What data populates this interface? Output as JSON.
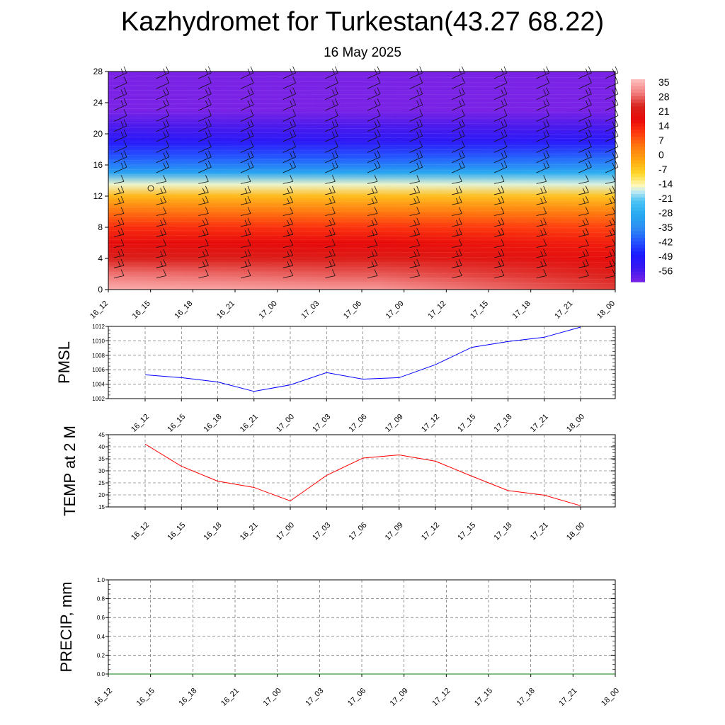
{
  "title": "Kazhydromet for Turkestan(43.27 68.22)",
  "subtitle": "16 May 2025",
  "chart_data": [
    {
      "type": "heatmap",
      "description_of_field": "temperature cross-section with wind barbs",
      "x_ticks": [
        "16_12",
        "16_15",
        "16_18",
        "16_21",
        "17_00",
        "17_03",
        "17_06",
        "17_09",
        "17_12",
        "17_15",
        "17_18",
        "17_21",
        "18_00"
      ],
      "y_ticks": [
        0,
        4,
        8,
        12,
        16,
        20,
        24,
        28
      ],
      "ylim": [
        0,
        28
      ],
      "colorbar_labels": [
        35,
        28,
        21,
        14,
        7,
        0,
        -7,
        -14,
        -21,
        -28,
        -35,
        -42,
        -49,
        -56
      ],
      "colorbar_range": [
        -63,
        42
      ],
      "color_stops": [
        {
          "v": -63,
          "c": "#7a23e6"
        },
        {
          "v": -56,
          "c": "#3a18f0"
        },
        {
          "v": -49,
          "c": "#1b1aff"
        },
        {
          "v": -42,
          "c": "#2457ff"
        },
        {
          "v": -35,
          "c": "#2e8ef2"
        },
        {
          "v": -28,
          "c": "#27aaf0"
        },
        {
          "v": -21,
          "c": "#4fc4f4"
        },
        {
          "v": -16,
          "c": "#c6ecf2"
        },
        {
          "v": -13,
          "c": "#fff8b8"
        },
        {
          "v": -7,
          "c": "#ffd72a"
        },
        {
          "v": 0,
          "c": "#ffa711"
        },
        {
          "v": 7,
          "c": "#ff7a10"
        },
        {
          "v": 14,
          "c": "#ff3b10"
        },
        {
          "v": 21,
          "c": "#e80a0a"
        },
        {
          "v": 28,
          "c": "#d8241e"
        },
        {
          "v": 35,
          "c": "#f28080"
        },
        {
          "v": 42,
          "c": "#ffc0c0"
        }
      ],
      "profiles": {
        "heights": [
          0,
          2,
          4,
          6,
          8,
          10,
          12,
          13.5,
          15,
          17,
          19,
          21,
          23,
          28
        ],
        "temps_start": [
          40,
          34,
          27,
          22,
          16,
          8,
          -2,
          -14,
          -30,
          -42,
          -52,
          -58,
          -63,
          -63
        ],
        "temps_mid": [
          38,
          32,
          26,
          21,
          15,
          7,
          -3,
          -14,
          -29,
          -42,
          -53,
          -58,
          -63,
          -63
        ],
        "temps_end": [
          30,
          26,
          22,
          18,
          13,
          6,
          -4,
          -15,
          -27,
          -40,
          -52,
          -58,
          -63,
          -63
        ]
      }
    },
    {
      "type": "line",
      "ylabel": "PMSL",
      "categories": [
        "16_12",
        "16_15",
        "16_18",
        "16_21",
        "17_00",
        "17_03",
        "17_06",
        "17_09",
        "17_12",
        "17_15",
        "17_18",
        "17_21",
        "18_00"
      ],
      "values": [
        1005.3,
        1004.9,
        1004.3,
        1003.0,
        1003.9,
        1005.6,
        1004.7,
        1004.9,
        1006.7,
        1009.1,
        1009.9,
        1010.5,
        1011.9
      ],
      "ylim": [
        1002,
        1012
      ],
      "y_ticks": [
        1002,
        1004,
        1006,
        1008,
        1010,
        1012
      ],
      "color": "#0000ff",
      "grid": true
    },
    {
      "type": "line",
      "ylabel": "TEMP at 2 M",
      "categories": [
        "16_12",
        "16_15",
        "16_18",
        "16_21",
        "17_00",
        "17_03",
        "17_06",
        "17_09",
        "17_12",
        "17_15",
        "17_18",
        "17_21",
        "18_00"
      ],
      "values": [
        41.1,
        31.9,
        25.7,
        23.1,
        17.5,
        28.1,
        35.3,
        36.6,
        34.0,
        27.8,
        21.8,
        19.9,
        15.5
      ],
      "ylim": [
        15,
        45
      ],
      "y_ticks": [
        15,
        20,
        25,
        30,
        35,
        40,
        45
      ],
      "color": "#ff0000",
      "grid": true
    },
    {
      "type": "line",
      "ylabel": "PRECIP, mm",
      "categories": [
        "16_12",
        "16_15",
        "16_18",
        "16_21",
        "17_00",
        "17_03",
        "17_06",
        "17_09",
        "17_12",
        "17_15",
        "17_18",
        "17_21",
        "18_00"
      ],
      "values": [
        0,
        0,
        0,
        0,
        0,
        0,
        0,
        0,
        0,
        0,
        0,
        0,
        0
      ],
      "ylim": [
        0,
        1
      ],
      "y_ticks": [
        "0.0",
        "0.2",
        "0.4",
        "0.6",
        "0.8",
        "1.0"
      ],
      "color": "#008000",
      "grid": true
    }
  ]
}
